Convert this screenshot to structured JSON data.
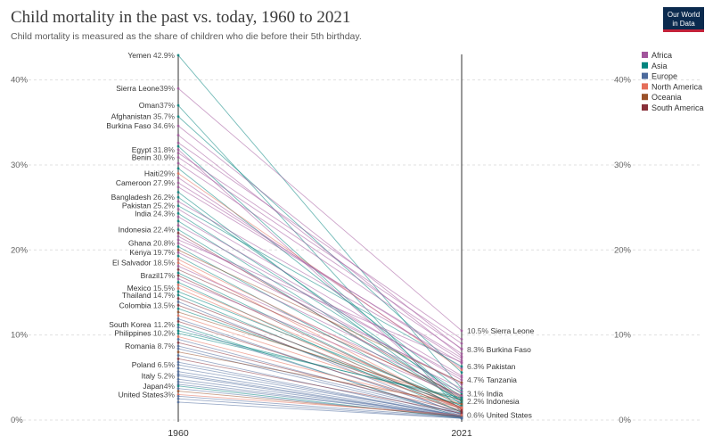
{
  "header": {
    "title": "Child mortality in the past vs. today, 1960 to 2021",
    "subtitle": "Child mortality is measured as the share of children who die before their 5th birthday.",
    "logo_line1": "Our World",
    "logo_line2": "in Data"
  },
  "chart_data": {
    "type": "slope",
    "title": "Child mortality in the past vs. today, 1960 to 2021",
    "subtitle": "Child mortality is measured as the share of children who die before their 5th birthday.",
    "x": [
      "1960",
      "2021"
    ],
    "ylim": [
      0,
      43
    ],
    "yticks": [
      0,
      10,
      20,
      30,
      40
    ],
    "ytick_labels": [
      "0%",
      "10%",
      "20%",
      "30%",
      "40%"
    ],
    "grid": true,
    "legend_position": "top-right",
    "legend": [
      {
        "name": "Africa",
        "color": "#a2559c"
      },
      {
        "name": "Asia",
        "color": "#00847e"
      },
      {
        "name": "Europe",
        "color": "#4c6a9c"
      },
      {
        "name": "North America",
        "color": "#e56e5a"
      },
      {
        "name": "Oceania",
        "color": "#9a5129"
      },
      {
        "name": "South America",
        "color": "#883039"
      }
    ],
    "labeled_1960": [
      {
        "name": "Yemen",
        "value": 42.9,
        "label": "42.9%",
        "region": "Asia"
      },
      {
        "name": "Sierra Leone",
        "value": 39,
        "label": "39%",
        "region": "Africa"
      },
      {
        "name": "Oman",
        "value": 37,
        "label": "37%",
        "region": "Asia"
      },
      {
        "name": "Afghanistan",
        "value": 35.7,
        "label": "35.7%",
        "region": "Asia"
      },
      {
        "name": "Burkina Faso",
        "value": 34.6,
        "label": "34.6%",
        "region": "Africa"
      },
      {
        "name": "Egypt",
        "value": 31.8,
        "label": "31.8%",
        "region": "Africa"
      },
      {
        "name": "Benin",
        "value": 30.9,
        "label": "30.9%",
        "region": "Africa"
      },
      {
        "name": "Haiti",
        "value": 29,
        "label": "29%",
        "region": "North America"
      },
      {
        "name": "Cameroon",
        "value": 27.9,
        "label": "27.9%",
        "region": "Africa"
      },
      {
        "name": "Bangladesh",
        "value": 26.2,
        "label": "26.2%",
        "region": "Asia"
      },
      {
        "name": "Pakistan",
        "value": 25.2,
        "label": "25.2%",
        "region": "Asia"
      },
      {
        "name": "India",
        "value": 24.3,
        "label": "24.3%",
        "region": "Asia"
      },
      {
        "name": "Indonesia",
        "value": 22.4,
        "label": "22.4%",
        "region": "Asia"
      },
      {
        "name": "Ghana",
        "value": 20.8,
        "label": "20.8%",
        "region": "Africa"
      },
      {
        "name": "Kenya",
        "value": 19.7,
        "label": "19.7%",
        "region": "Africa"
      },
      {
        "name": "El Salvador",
        "value": 18.5,
        "label": "18.5%",
        "region": "North America"
      },
      {
        "name": "Brazil",
        "value": 17,
        "label": "17%",
        "region": "South America"
      },
      {
        "name": "Mexico",
        "value": 15.5,
        "label": "15.5%",
        "region": "North America"
      },
      {
        "name": "Thailand",
        "value": 14.7,
        "label": "14.7%",
        "region": "Asia"
      },
      {
        "name": "Colombia",
        "value": 13.5,
        "label": "13.5%",
        "region": "South America"
      },
      {
        "name": "South Korea",
        "value": 11.2,
        "label": "11.2%",
        "region": "Asia"
      },
      {
        "name": "Philippines",
        "value": 10.2,
        "label": "10.2%",
        "region": "Asia"
      },
      {
        "name": "Romania",
        "value": 8.7,
        "label": "8.7%",
        "region": "Europe"
      },
      {
        "name": "Poland",
        "value": 6.5,
        "label": "6.5%",
        "region": "Europe"
      },
      {
        "name": "Italy",
        "value": 5.2,
        "label": "5.2%",
        "region": "Europe"
      },
      {
        "name": "Japan",
        "value": 4,
        "label": "4%",
        "region": "Asia"
      },
      {
        "name": "United States",
        "value": 3,
        "label": "3%",
        "region": "North America"
      }
    ],
    "labeled_2021": [
      {
        "name": "Sierra Leone",
        "value": 10.5,
        "label": "10.5%",
        "region": "Africa"
      },
      {
        "name": "Burkina Faso",
        "value": 8.3,
        "label": "8.3%",
        "region": "Africa"
      },
      {
        "name": "Pakistan",
        "value": 6.3,
        "label": "6.3%",
        "region": "Asia"
      },
      {
        "name": "Tanzania",
        "value": 4.7,
        "label": "4.7%",
        "region": "Africa"
      },
      {
        "name": "India",
        "value": 3.1,
        "label": "3.1%",
        "region": "Asia"
      },
      {
        "name": "Indonesia",
        "value": 2.2,
        "label": "2.2%",
        "region": "Asia"
      },
      {
        "name": "United States",
        "value": 0.6,
        "label": "0.6%",
        "region": "North America"
      }
    ],
    "series": [
      {
        "region": "Asia",
        "v1960": 42.9,
        "v2021": 3.7
      },
      {
        "region": "Africa",
        "v1960": 39,
        "v2021": 10.5
      },
      {
        "region": "Asia",
        "v1960": 37,
        "v2021": 0.9
      },
      {
        "region": "Asia",
        "v1960": 35.7,
        "v2021": 5.6
      },
      {
        "region": "Africa",
        "v1960": 34.6,
        "v2021": 8.3
      },
      {
        "region": "Africa",
        "v1960": 33.5,
        "v2021": 7.5
      },
      {
        "region": "Africa",
        "v1960": 32.6,
        "v2021": 9.5
      },
      {
        "region": "Asia",
        "v1960": 32.2,
        "v2021": 2.1
      },
      {
        "region": "Africa",
        "v1960": 31.8,
        "v2021": 1.9
      },
      {
        "region": "Africa",
        "v1960": 31.4,
        "v2021": 9.0
      },
      {
        "region": "Africa",
        "v1960": 30.9,
        "v2021": 8.4
      },
      {
        "region": "Africa",
        "v1960": 30.2,
        "v2021": 7.8
      },
      {
        "region": "Asia",
        "v1960": 29.6,
        "v2021": 3.4
      },
      {
        "region": "North America",
        "v1960": 29,
        "v2021": 5.9
      },
      {
        "region": "Africa",
        "v1960": 28.5,
        "v2021": 6.1
      },
      {
        "region": "Africa",
        "v1960": 27.9,
        "v2021": 7.0
      },
      {
        "region": "Africa",
        "v1960": 27.4,
        "v2021": 7.3
      },
      {
        "region": "Asia",
        "v1960": 26.8,
        "v2021": 1.8
      },
      {
        "region": "Asia",
        "v1960": 26.2,
        "v2021": 2.7
      },
      {
        "region": "Africa",
        "v1960": 25.7,
        "v2021": 6.7
      },
      {
        "region": "Asia",
        "v1960": 25.2,
        "v2021": 6.3
      },
      {
        "region": "Africa",
        "v1960": 24.8,
        "v2021": 5.2
      },
      {
        "region": "Asia",
        "v1960": 24.3,
        "v2021": 3.1
      },
      {
        "region": "Africa",
        "v1960": 23.9,
        "v2021": 4.7
      },
      {
        "region": "Asia",
        "v1960": 23.4,
        "v2021": 2.4
      },
      {
        "region": "Africa",
        "v1960": 22.9,
        "v2021": 5.0
      },
      {
        "region": "Asia",
        "v1960": 22.4,
        "v2021": 2.2
      },
      {
        "region": "South America",
        "v1960": 22.0,
        "v2021": 2.6
      },
      {
        "region": "Africa",
        "v1960": 21.6,
        "v2021": 4.2
      },
      {
        "region": "Africa",
        "v1960": 21.2,
        "v2021": 6.8
      },
      {
        "region": "Africa",
        "v1960": 20.8,
        "v2021": 4.4
      },
      {
        "region": "Asia",
        "v1960": 20.4,
        "v2021": 2.3
      },
      {
        "region": "Oceania",
        "v1960": 20.0,
        "v2021": 4.4
      },
      {
        "region": "Africa",
        "v1960": 19.7,
        "v2021": 3.7
      },
      {
        "region": "Asia",
        "v1960": 19.3,
        "v2021": 1.6
      },
      {
        "region": "North America",
        "v1960": 18.9,
        "v2021": 2.5
      },
      {
        "region": "North America",
        "v1960": 18.5,
        "v2021": 1.2
      },
      {
        "region": "Africa",
        "v1960": 18.1,
        "v2021": 3.3
      },
      {
        "region": "South America",
        "v1960": 17.7,
        "v2021": 2.9
      },
      {
        "region": "Asia",
        "v1960": 17.3,
        "v2021": 1.4
      },
      {
        "region": "South America",
        "v1960": 17,
        "v2021": 1.4
      },
      {
        "region": "Africa",
        "v1960": 16.6,
        "v2021": 2.8
      },
      {
        "region": "Asia",
        "v1960": 16.2,
        "v2021": 0.9
      },
      {
        "region": "North America",
        "v1960": 15.9,
        "v2021": 1.8
      },
      {
        "region": "North America",
        "v1960": 15.5,
        "v2021": 1.3
      },
      {
        "region": "Asia",
        "v1960": 15.1,
        "v2021": 2.0
      },
      {
        "region": "Asia",
        "v1960": 14.7,
        "v2021": 0.9
      },
      {
        "region": "South America",
        "v1960": 14.3,
        "v2021": 1.5
      },
      {
        "region": "Europe",
        "v1960": 13.9,
        "v2021": 0.6
      },
      {
        "region": "South America",
        "v1960": 13.5,
        "v2021": 1.3
      },
      {
        "region": "Asia",
        "v1960": 13.1,
        "v2021": 1.7
      },
      {
        "region": "Oceania",
        "v1960": 12.7,
        "v2021": 2.3
      },
      {
        "region": "North America",
        "v1960": 12.3,
        "v2021": 1.5
      },
      {
        "region": "Europe",
        "v1960": 11.9,
        "v2021": 0.8
      },
      {
        "region": "South America",
        "v1960": 11.6,
        "v2021": 1.1
      },
      {
        "region": "Asia",
        "v1960": 11.2,
        "v2021": 0.3
      },
      {
        "region": "Europe",
        "v1960": 10.9,
        "v2021": 0.5
      },
      {
        "region": "Asia",
        "v1960": 10.5,
        "v2021": 2.4
      },
      {
        "region": "Asia",
        "v1960": 10.2,
        "v2021": 2.6
      },
      {
        "region": "North America",
        "v1960": 9.8,
        "v2021": 1.4
      },
      {
        "region": "Europe",
        "v1960": 9.5,
        "v2021": 0.7
      },
      {
        "region": "South America",
        "v1960": 9.1,
        "v2021": 1.0
      },
      {
        "region": "Europe",
        "v1960": 8.7,
        "v2021": 0.7
      },
      {
        "region": "Europe",
        "v1960": 8.4,
        "v2021": 0.5
      },
      {
        "region": "Oceania",
        "v1960": 8.0,
        "v2021": 1.9
      },
      {
        "region": "Europe",
        "v1960": 7.6,
        "v2021": 0.4
      },
      {
        "region": "South America",
        "v1960": 7.2,
        "v2021": 0.8
      },
      {
        "region": "Europe",
        "v1960": 6.8,
        "v2021": 0.4
      },
      {
        "region": "Europe",
        "v1960": 6.5,
        "v2021": 0.4
      },
      {
        "region": "Europe",
        "v1960": 6.1,
        "v2021": 0.5
      },
      {
        "region": "Europe",
        "v1960": 5.7,
        "v2021": 0.4
      },
      {
        "region": "Europe",
        "v1960": 5.4,
        "v2021": 0.3
      },
      {
        "region": "Europe",
        "v1960": 5.2,
        "v2021": 0.3
      },
      {
        "region": "Europe",
        "v1960": 4.8,
        "v2021": 0.4
      },
      {
        "region": "Europe",
        "v1960": 4.5,
        "v2021": 0.3
      },
      {
        "region": "Europe",
        "v1960": 4.2,
        "v2021": 0.4
      },
      {
        "region": "Asia",
        "v1960": 4,
        "v2021": 0.2
      },
      {
        "region": "Europe",
        "v1960": 3.7,
        "v2021": 0.3
      },
      {
        "region": "Oceania",
        "v1960": 3.4,
        "v2021": 0.4
      },
      {
        "region": "North America",
        "v1960": 3,
        "v2021": 0.6
      },
      {
        "region": "Europe",
        "v1960": 2.8,
        "v2021": 0.3
      },
      {
        "region": "Europe",
        "v1960": 2.5,
        "v2021": 0.2
      },
      {
        "region": "Europe",
        "v1960": 2.1,
        "v2021": 0.2
      }
    ]
  }
}
